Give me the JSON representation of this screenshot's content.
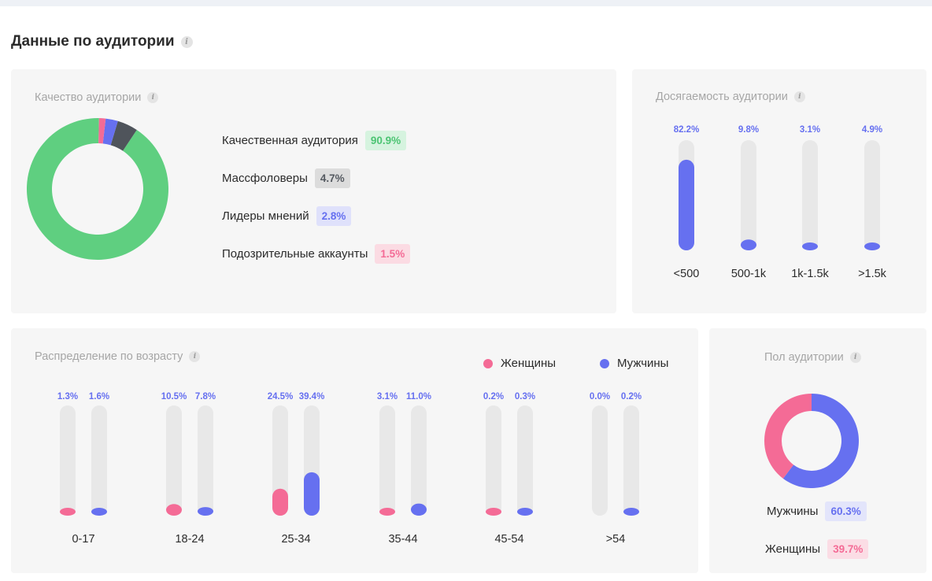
{
  "heading": "Данные по аудитории",
  "colors": {
    "green": "#5fcf80",
    "dark": "#4f545b",
    "blue": "#6670f0",
    "pink": "#f46b96",
    "track": "#e8e8e8"
  },
  "quality": {
    "title": "Качество аудитории",
    "chart_data": {
      "type": "pie",
      "labels": [
        "Качественная аудитория",
        "Массфоловеры",
        "Лидеры мнений",
        "Подозрительные аккаунты"
      ],
      "values": [
        90.9,
        4.7,
        2.8,
        1.5
      ],
      "display": [
        "90.9%",
        "4.7%",
        "2.8%",
        "1.5%"
      ]
    }
  },
  "reach": {
    "title": "Досягаемость аудитории",
    "chart_data": {
      "type": "bar",
      "categories": [
        "<500",
        "500-1k",
        "1k-1.5k",
        ">1.5k"
      ],
      "values": [
        82.2,
        9.8,
        3.1,
        4.9
      ],
      "value_labels": [
        "82.2%",
        "9.8%",
        "3.1%",
        "4.9%"
      ],
      "ylim": [
        0,
        100
      ]
    }
  },
  "age": {
    "title": "Распределение по возрасту",
    "chart_data": {
      "type": "bar",
      "categories": [
        "0-17",
        "18-24",
        "25-34",
        "35-44",
        "45-54",
        ">54"
      ],
      "ylim": [
        0,
        100
      ],
      "series": [
        {
          "name": "Женщины",
          "values": [
            1.3,
            10.5,
            24.5,
            3.1,
            0.2,
            0.0
          ],
          "labels": [
            "1.3%",
            "10.5%",
            "24.5%",
            "3.1%",
            "0.2%",
            "0.0%"
          ]
        },
        {
          "name": "Мужчины",
          "values": [
            1.6,
            7.8,
            39.4,
            11.0,
            0.3,
            0.2
          ],
          "labels": [
            "1.6%",
            "7.8%",
            "39.4%",
            "11.0%",
            "0.3%",
            "0.2%"
          ]
        }
      ]
    }
  },
  "gender": {
    "title": "Пол аудитории",
    "chart_data": {
      "type": "pie",
      "labels": [
        "Мужчины",
        "Женщины"
      ],
      "values": [
        60.3,
        39.7
      ],
      "display": [
        "60.3%",
        "39.7%"
      ]
    }
  }
}
